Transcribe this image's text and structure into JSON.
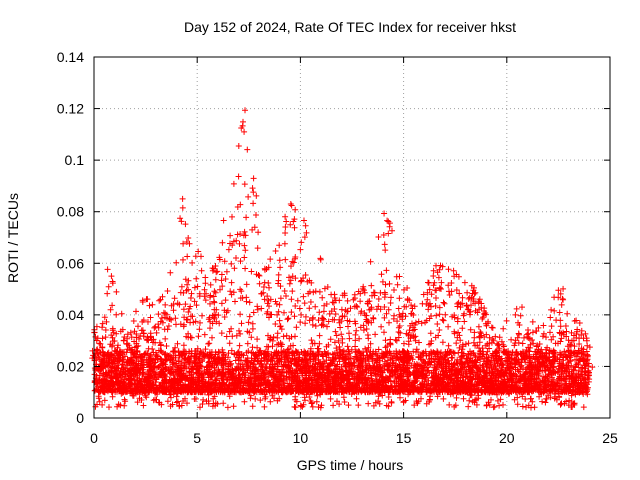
{
  "chart_data": {
    "type": "scatter",
    "title": "Day 152 of 2024, Rate Of TEC Index for receiver hkst",
    "xlabel": "GPS time / hours",
    "ylabel": "ROTI / TECUs",
    "xlim": [
      0,
      25
    ],
    "ylim": [
      0,
      0.14
    ],
    "xticks": [
      0,
      5,
      10,
      15,
      20,
      25
    ],
    "yticks": [
      0,
      0.02,
      0.04,
      0.06,
      0.08,
      0.1,
      0.12,
      0.14
    ],
    "xtick_labels": [
      "0",
      "5",
      "10",
      "15",
      "20",
      "25"
    ],
    "ytick_labels": [
      "0",
      "0.02",
      "0.04",
      "0.06",
      "0.08",
      "0.1",
      "0.12",
      "0.14"
    ],
    "grid": true,
    "marker": "+",
    "color": "#ff0000",
    "series": [
      {
        "name": "ROTI",
        "note": "dense cloud of ~thousands of points; representative envelope below (hour, typical_max, peak)",
        "envelope": [
          [
            0.0,
            0.03,
            0.035
          ],
          [
            0.5,
            0.028,
            0.04
          ],
          [
            0.8,
            0.035,
            0.064
          ],
          [
            1.5,
            0.03,
            0.035
          ],
          [
            2.5,
            0.035,
            0.047
          ],
          [
            3.5,
            0.042,
            0.05
          ],
          [
            4.3,
            0.055,
            0.087
          ],
          [
            5.5,
            0.05,
            0.055
          ],
          [
            6.0,
            0.058,
            0.066
          ],
          [
            7.2,
            0.075,
            0.122
          ],
          [
            7.6,
            0.07,
            0.097
          ],
          [
            8.5,
            0.05,
            0.062
          ],
          [
            9.6,
            0.065,
            0.086
          ],
          [
            10.3,
            0.055,
            0.08
          ],
          [
            11.5,
            0.045,
            0.048
          ],
          [
            13.0,
            0.042,
            0.05
          ],
          [
            14.2,
            0.055,
            0.085
          ],
          [
            15.5,
            0.04,
            0.045
          ],
          [
            16.5,
            0.055,
            0.059
          ],
          [
            17.3,
            0.052,
            0.06
          ],
          [
            18.5,
            0.045,
            0.05
          ],
          [
            19.5,
            0.03,
            0.032
          ],
          [
            20.6,
            0.035,
            0.045
          ],
          [
            21.5,
            0.03,
            0.035
          ],
          [
            22.6,
            0.04,
            0.052
          ],
          [
            23.5,
            0.03,
            0.038
          ],
          [
            24.0,
            0.028,
            0.03
          ]
        ],
        "floor": 0.004
      }
    ]
  }
}
